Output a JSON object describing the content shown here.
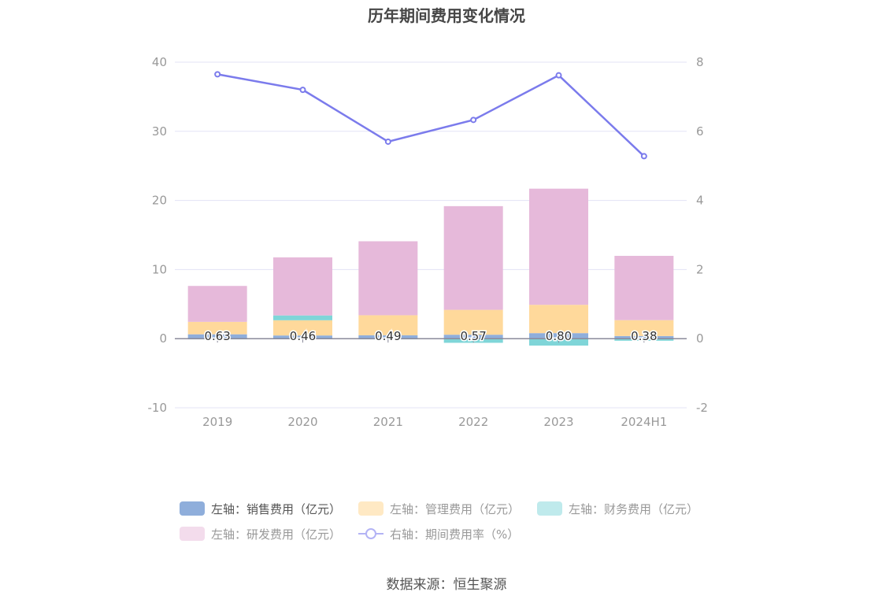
{
  "title": "历年期间费用变化情况",
  "source": "数据来源：恒生聚源",
  "colors": {
    "sales": "#8faedb",
    "admin": "#ffd99b",
    "finance": "#7fd5d8",
    "rd": "#e6b9da",
    "rate_line": "#7b7bec",
    "grid": "#e3e3f5",
    "axis": "#8a8a9a"
  },
  "legend": {
    "sales": "左轴：销售费用（亿元）",
    "admin": "左轴：管理费用（亿元）",
    "finance": "左轴：财务费用（亿元）",
    "rd": "左轴：研发费用（亿元）",
    "rate": "右轴：期间费用率（%）"
  },
  "chart_data": {
    "type": "bar",
    "title": "历年期间费用变化情况",
    "categories": [
      "2019",
      "2020",
      "2021",
      "2022",
      "2023",
      "2024H1"
    ],
    "y_left": {
      "ylim": [
        -10,
        40
      ],
      "ticks": [
        "-10",
        "0",
        "10",
        "20",
        "30",
        "40"
      ]
    },
    "y_right": {
      "ylim": [
        -2,
        8
      ],
      "ticks": [
        "-2",
        "0",
        "2",
        "4",
        "6",
        "8"
      ]
    },
    "series": [
      {
        "name": "左轴：销售费用（亿元）",
        "key": "sales",
        "axis": "left",
        "stack": true,
        "values": [
          0.63,
          0.46,
          0.49,
          0.57,
          0.8,
          0.38
        ],
        "labels": [
          "0.63",
          "0.46",
          "0.49",
          "0.57",
          "0.80",
          "0.38"
        ]
      },
      {
        "name": "左轴：管理费用（亿元）",
        "key": "admin",
        "axis": "left",
        "stack": true,
        "values": [
          1.8,
          2.2,
          2.9,
          3.6,
          4.1,
          2.3
        ]
      },
      {
        "name": "左轴：财务费用（亿元）",
        "key": "finance",
        "axis": "left",
        "stack": true,
        "values": [
          -0.1,
          0.7,
          -0.1,
          -0.6,
          -1.0,
          -0.3
        ]
      },
      {
        "name": "左轴：研发费用（亿元）",
        "key": "rd",
        "axis": "left",
        "stack": true,
        "values": [
          5.2,
          8.4,
          10.7,
          15.0,
          16.8,
          9.3
        ]
      },
      {
        "name": "右轴：期间费用率（%）",
        "key": "rate",
        "axis": "right",
        "type": "line",
        "values": [
          7.65,
          7.2,
          5.7,
          6.33,
          7.62,
          5.28
        ]
      }
    ],
    "grid": true,
    "legend_position": "bottom"
  }
}
